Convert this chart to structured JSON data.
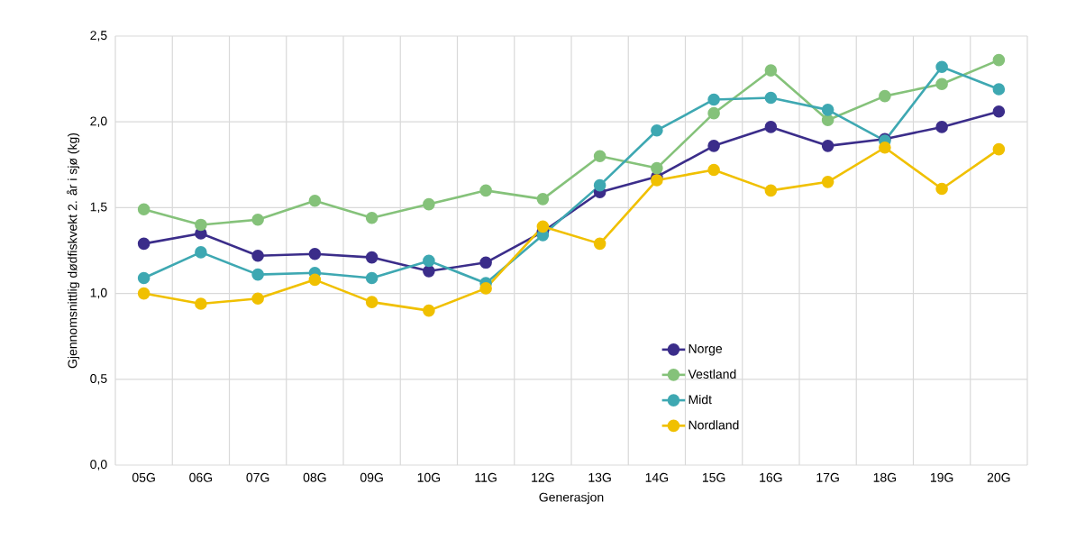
{
  "chart_data": {
    "type": "line",
    "xlabel": "Generasjon",
    "ylabel": "Gjennomsnittlig dødfiskvekt 2. år i sjø (kg)",
    "categories": [
      "05G",
      "06G",
      "07G",
      "08G",
      "09G",
      "10G",
      "11G",
      "12G",
      "13G",
      "14G",
      "15G",
      "16G",
      "17G",
      "18G",
      "19G",
      "20G"
    ],
    "series": [
      {
        "name": "Norge",
        "color": "#3b2d8a",
        "values": [
          1.29,
          1.35,
          1.22,
          1.23,
          1.21,
          1.13,
          1.18,
          1.36,
          1.59,
          1.68,
          1.86,
          1.97,
          1.86,
          1.9,
          1.97,
          2.06
        ]
      },
      {
        "name": "Vestland",
        "color": "#85c27a",
        "values": [
          1.49,
          1.4,
          1.43,
          1.54,
          1.44,
          1.52,
          1.6,
          1.55,
          1.8,
          1.73,
          2.05,
          2.3,
          2.01,
          2.15,
          2.22,
          2.36
        ]
      },
      {
        "name": "Midt",
        "color": "#3ea8b2",
        "values": [
          1.09,
          1.24,
          1.11,
          1.12,
          1.09,
          1.19,
          1.06,
          1.34,
          1.63,
          1.95,
          2.13,
          2.14,
          2.07,
          1.89,
          2.32,
          2.19
        ]
      },
      {
        "name": "Nordland",
        "color": "#f0c000",
        "values": [
          1.0,
          0.94,
          0.97,
          1.08,
          0.95,
          0.9,
          1.03,
          1.39,
          1.29,
          1.66,
          1.72,
          1.6,
          1.65,
          1.85,
          1.61,
          1.84
        ]
      }
    ],
    "ylim": [
      0,
      2.5
    ],
    "yticks": [
      {
        "value": 0,
        "label": "0,0"
      },
      {
        "value": 0.5,
        "label": "0,5"
      },
      {
        "value": 1.0,
        "label": "1,0"
      },
      {
        "value": 1.5,
        "label": "1,5"
      },
      {
        "value": 2.0,
        "label": "2,0"
      },
      {
        "value": 2.5,
        "label": "2,5"
      }
    ],
    "grid": true,
    "legend": "bottom right",
    "marker": "circle",
    "line_style": "solid"
  }
}
